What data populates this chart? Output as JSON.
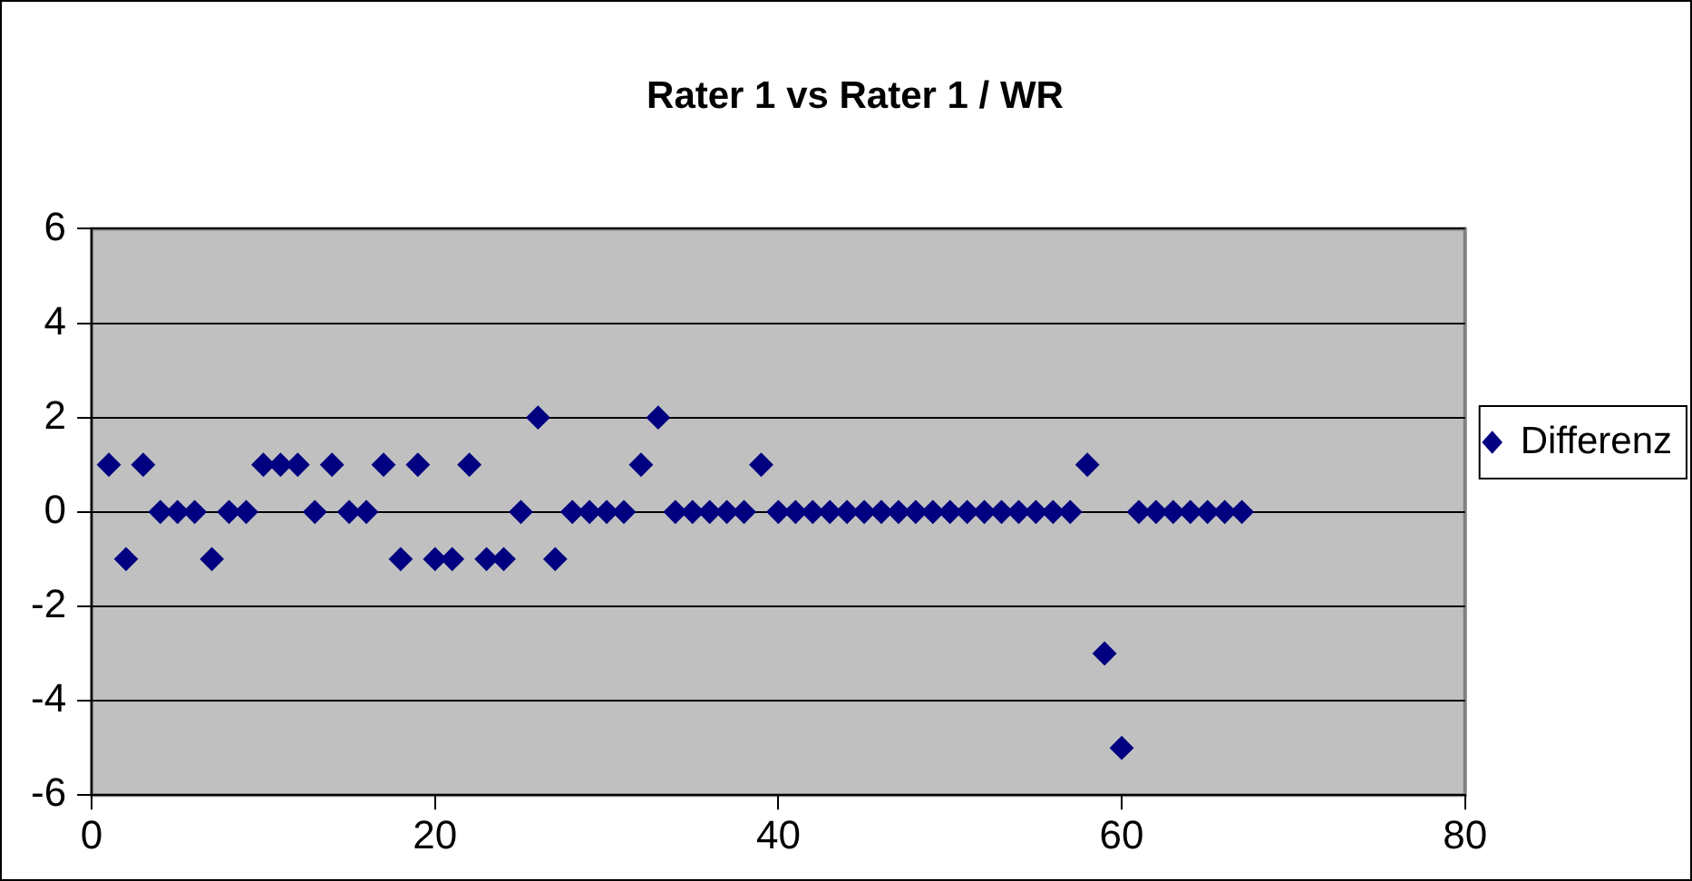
{
  "chart_data": {
    "type": "scatter",
    "title": "Rater 1 vs Rater 1 / WR",
    "x": [
      1,
      2,
      3,
      4,
      5,
      6,
      7,
      8,
      9,
      10,
      11,
      12,
      13,
      14,
      15,
      16,
      17,
      18,
      19,
      20,
      21,
      22,
      23,
      24,
      25,
      26,
      27,
      28,
      29,
      30,
      31,
      32,
      33,
      34,
      35,
      36,
      37,
      38,
      39,
      40,
      41,
      42,
      43,
      44,
      45,
      46,
      47,
      48,
      49,
      50,
      51,
      52,
      53,
      54,
      55,
      56,
      57,
      58,
      59,
      60,
      61,
      62,
      63,
      64,
      65,
      66,
      67
    ],
    "series": [
      {
        "name": "Differenz",
        "color": "#000080",
        "values": [
          1,
          -1,
          1,
          0,
          0,
          0,
          -1,
          0,
          0,
          1,
          1,
          1,
          0,
          1,
          0,
          0,
          1,
          -1,
          1,
          -1,
          -1,
          1,
          -1,
          -1,
          0,
          2,
          -1,
          0,
          0,
          0,
          0,
          1,
          2,
          0,
          0,
          0,
          0,
          0,
          1,
          0,
          0,
          0,
          0,
          0,
          0,
          0,
          0,
          0,
          0,
          0,
          0,
          0,
          0,
          0,
          0,
          0,
          0,
          1,
          -3,
          -5,
          0,
          0,
          0,
          0,
          0,
          0,
          0
        ]
      }
    ],
    "xlim": [
      0,
      80
    ],
    "xticks": [
      0,
      20,
      40,
      60,
      80
    ],
    "ylim": [
      -6,
      6
    ],
    "yticks": [
      -6,
      -4,
      -2,
      0,
      2,
      4,
      6
    ],
    "grid": "y",
    "legend": "right",
    "marker": "diamond"
  }
}
